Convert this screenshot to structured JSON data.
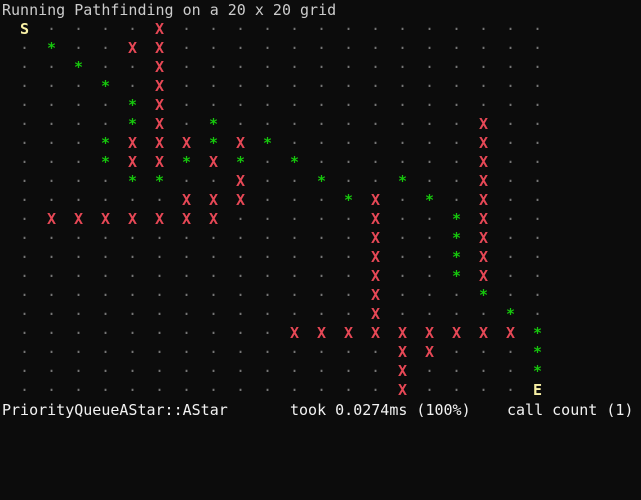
{
  "terminal": {
    "header_text": "Running Pathfinding on a 20 x 20 grid",
    "colors": {
      "background": "#0c0c0c",
      "empty_cell": "#767676",
      "wall": "#e74856",
      "path": "#16c60c",
      "endpoint": "#f9f1a5"
    },
    "grid": {
      "rows": [
        "S....X..............",
        ".*..XX..............",
        "..*..X..............",
        "...*.X..............",
        "....*X..............",
        "....*X.*.........X..",
        "...*XXX*X*.......X..",
        "...*XX*X*.*......X..",
        "....**..X..*..*..X..",
        "......XXX...*X.*.X..",
        ".XXXXXXX.....X..*X..",
        ".............X..*X..",
        ".............X..*X..",
        ".............X..*X..",
        ".............X...*..",
        ".............X....*.",
        "..........XXXXXXXXX*",
        "..............XX...*",
        "..............X....*",
        "..............X....E"
      ],
      "legend_symbols": {
        "empty": "·",
        "wall": "X",
        "path": "*",
        "start": "S",
        "end": "E"
      }
    },
    "status": {
      "algorithm": "PriorityQueueAStar::AStar",
      "timing": "took 0.0274ms (100%)",
      "calls": "call count (1)"
    }
  }
}
